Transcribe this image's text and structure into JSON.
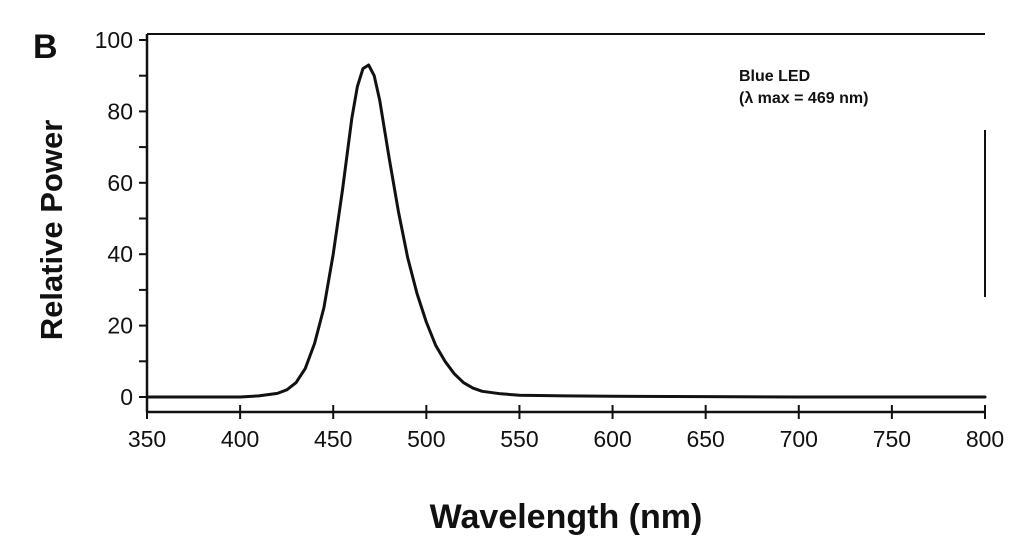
{
  "panel_label": "B",
  "colors": {
    "line": "#111111",
    "axis": "#111111",
    "background": "#ffffff"
  },
  "chart_data": {
    "type": "line",
    "title": "",
    "xlabel": "Wavelength (nm)",
    "ylabel": "Relative Power",
    "xlim": [
      350,
      800
    ],
    "ylim": [
      -5,
      102
    ],
    "x_ticks": [
      350,
      400,
      450,
      500,
      550,
      600,
      650,
      700,
      750,
      800
    ],
    "x_tick_labels": [
      "350",
      "400",
      "450",
      "500",
      "550",
      "600",
      "650",
      "700",
      "750",
      "800"
    ],
    "y_ticks": [
      0,
      20,
      40,
      60,
      80,
      100
    ],
    "y_tick_labels": [
      "0",
      "20",
      "40",
      "60",
      "80",
      "100"
    ],
    "y_minor_ticks": [
      10,
      30,
      50,
      70,
      90
    ],
    "grid": false,
    "annotation": [
      "Blue LED",
      "(λ max = 469 nm)"
    ],
    "series": [
      {
        "x": [
          350,
          360,
          380,
          400,
          410,
          420,
          425,
          430,
          435,
          440,
          445,
          450,
          455,
          460,
          463,
          466,
          469,
          472,
          475,
          480,
          485,
          490,
          495,
          500,
          505,
          510,
          515,
          520,
          525,
          530,
          540,
          550,
          575,
          600,
          650,
          700,
          750,
          800
        ],
        "values": [
          0,
          0,
          0,
          0,
          0.3,
          1.0,
          2.0,
          4.0,
          8.0,
          15.0,
          25.0,
          40.0,
          58.0,
          78.0,
          87.0,
          92.0,
          93.0,
          90.0,
          83.0,
          67.0,
          52.0,
          39.0,
          29.0,
          21.0,
          14.5,
          10.0,
          6.5,
          4.0,
          2.5,
          1.6,
          0.9,
          0.5,
          0.3,
          0.2,
          0.1,
          0,
          0,
          0
        ]
      }
    ]
  }
}
